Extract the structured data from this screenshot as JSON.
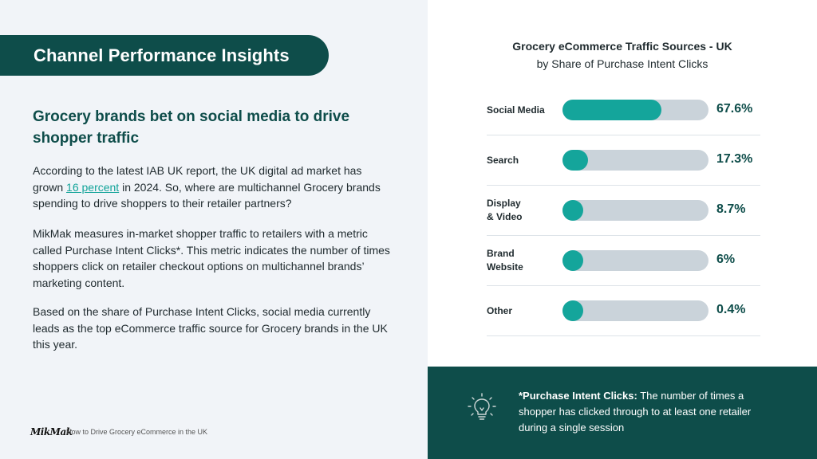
{
  "section_title": "Channel Performance Insights",
  "headline": "Grocery brands bet on social media to drive shopper traffic",
  "paragraph1": {
    "before": "According to the latest IAB UK report,  the UK digital ad market has grown ",
    "link": "16 percent",
    "after": " in 2024. So, where are multichannel Grocery brands spending to drive shoppers to their retailer partners?"
  },
  "paragraph2": "MikMak measures in-market shopper traffic to retailers with a metric called Purchase Intent Clicks*. This metric indicates the number of times shoppers click on retailer checkout options on multichannel brands’ marketing content.",
  "paragraph3": "Based on the share of Purchase Intent Clicks, social media currently leads as the top eCommerce traffic source for Grocery brands in the UK this year.",
  "footer": {
    "logo": "MikMak",
    "text": "How to Drive Grocery eCommerce in the UK"
  },
  "chart_data": {
    "type": "bar",
    "title": "Grocery eCommerce Traffic Sources - UK",
    "subtitle": "by Share of Purchase Intent Clicks",
    "categories": [
      {
        "line1": "Social Media",
        "line2": ""
      },
      {
        "line1": "Search",
        "line2": ""
      },
      {
        "line1": "Display",
        "line2": "& Video"
      },
      {
        "line1": "Brand",
        "line2": "Website"
      },
      {
        "line1": "Other",
        "line2": ""
      }
    ],
    "values": [
      67.6,
      17.3,
      8.7,
      6,
      0.4
    ],
    "value_labels": [
      "67.6%",
      "17.3%",
      "8.7%",
      "6%",
      "0.4%"
    ],
    "ylim": [
      0,
      100
    ],
    "unit": "%"
  },
  "note": {
    "term": "*Purchase Intent Clicks:",
    "definition": " The number of times a shopper has clicked through to at least one retailer during a single session"
  },
  "colors": {
    "primary": "#0e4d4a",
    "accent": "#14a59b",
    "track": "#cad3da",
    "left_bg": "#f1f4f8"
  },
  "icons": {
    "note_icon": "lightbulb-icon"
  }
}
